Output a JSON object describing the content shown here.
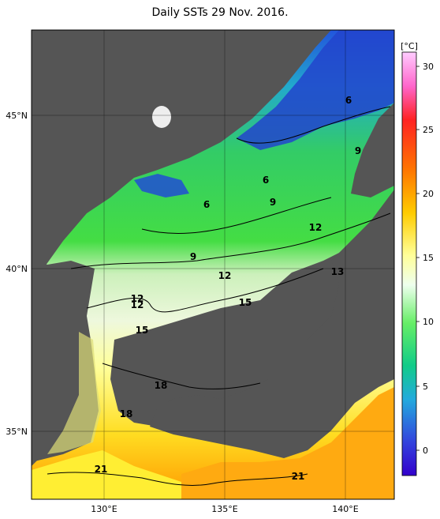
{
  "title": "Daily SSTs 29 Nov. 2016.",
  "colorbar": {
    "unit": "[°C]",
    "min": -2,
    "max": 32,
    "ticks": [
      "30",
      "25",
      "20",
      "15",
      "10",
      "5",
      "0"
    ],
    "colors": [
      "#ff99ff",
      "#ff3333",
      "#ff6600",
      "#ffcc00",
      "#ffffbb",
      "#99ff99",
      "#33cc33",
      "#33cccc",
      "#3366ff",
      "#2200cc"
    ]
  },
  "axes": {
    "lat_ticks": [
      "45°N",
      "40°N",
      "35°N"
    ],
    "lon_ticks": [
      "130°E",
      "135°E",
      "140°E"
    ]
  },
  "contour_labels": [
    "6",
    "9",
    "6",
    "6",
    "9",
    "12",
    "9",
    "12",
    "13",
    "12",
    "12",
    "15",
    "15",
    "18",
    "18",
    "21",
    "21"
  ],
  "colors": {
    "land": "#555555",
    "frame": "#000000",
    "grid": "#222222"
  }
}
